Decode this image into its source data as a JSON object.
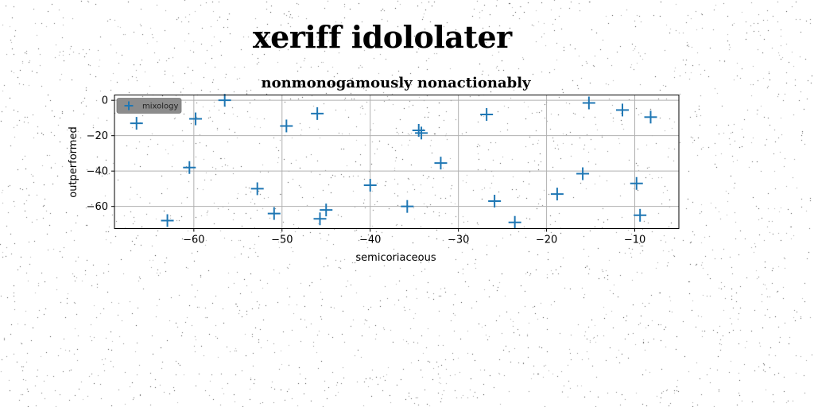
{
  "figure": {
    "suptitle": "xeriff idololater"
  },
  "chart_data": {
    "type": "scatter",
    "title": "nonmonogamously nonactionably",
    "xlabel": "semicoriaceous",
    "ylabel": "outperformed",
    "xlim": [
      -69,
      -5
    ],
    "ylim": [
      -72.5,
      3
    ],
    "xticks": [
      -60,
      -50,
      -40,
      -30,
      -20,
      -10
    ],
    "yticks": [
      0,
      -20,
      -40,
      -60
    ],
    "grid": true,
    "legend_location": "upper-left",
    "marker": "plus",
    "colors": {
      "series": "#1f77b4",
      "legend_bg": "#8c8c8c"
    },
    "series": [
      {
        "name": "mixology",
        "points": [
          [
            -66.5,
            -13
          ],
          [
            -63,
            -68
          ],
          [
            -60.5,
            -38
          ],
          [
            -59.8,
            -10.5
          ],
          [
            -56.5,
            0
          ],
          [
            -52.8,
            -50
          ],
          [
            -50.9,
            -64
          ],
          [
            -49.5,
            -14.5
          ],
          [
            -46,
            -7.5
          ],
          [
            -45.7,
            -67
          ],
          [
            -45,
            -62
          ],
          [
            -40,
            -48
          ],
          [
            -35.8,
            -60
          ],
          [
            -34.5,
            -17
          ],
          [
            -34.2,
            -18.5
          ],
          [
            -32,
            -35.5
          ],
          [
            -26.8,
            -8
          ],
          [
            -25.9,
            -57
          ],
          [
            -23.6,
            -69
          ],
          [
            -18.8,
            -53
          ],
          [
            -15.9,
            -41.5
          ],
          [
            -15.2,
            -1.5
          ],
          [
            -11.4,
            -5.5
          ],
          [
            -9.8,
            -47
          ],
          [
            -9.4,
            -65
          ],
          [
            -8.2,
            -9.5
          ]
        ]
      }
    ]
  }
}
